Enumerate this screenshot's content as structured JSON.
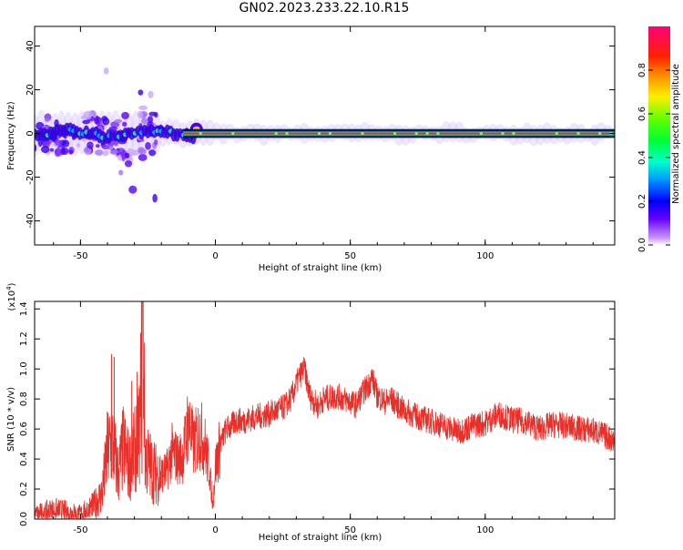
{
  "title": "GN02.2023.233.22.10.R15",
  "chart_data": [
    {
      "type": "heatmap",
      "title": "GN02.2023.233.22.10.R15",
      "xlabel": "Height of straight line (km)",
      "ylabel": "Frequency (Hz)",
      "xlim": [
        -67,
        148
      ],
      "ylim": [
        -51,
        49
      ],
      "xticks": [
        -50,
        0,
        50,
        100
      ],
      "yticks": [
        -40,
        -20,
        0,
        20,
        40
      ],
      "colorbar": {
        "label": "Normalized spectral amplitude",
        "range": [
          0.0,
          1.0
        ],
        "ticks": [
          "0.0",
          "0.2",
          "0.4",
          "0.6",
          "0.8"
        ],
        "tick_values": [
          0.0,
          0.2,
          0.4,
          0.6,
          0.8
        ],
        "colors": [
          "#ffffff",
          "#9966ff",
          "#4400ff",
          "#0000ff",
          "#00ccff",
          "#00ff99",
          "#00ff00",
          "#99ff00",
          "#ffcc00",
          "#ff3300",
          "#ff0066"
        ]
      },
      "band": {
        "center_hz": 0,
        "strong_from_km": -12,
        "scatter_from_km": -67,
        "scatter_to_km": -20
      },
      "grid": false
    },
    {
      "type": "line",
      "xlabel": "Height of straight line (km)",
      "ylabel": "SNR (10 * v/v)",
      "multiplier": "(x10",
      "multiplier_exp": "4",
      "multiplier_close": ")",
      "xlim": [
        -67,
        148
      ],
      "ylim": [
        0,
        1.45
      ],
      "xticks": [
        -50,
        0,
        50,
        100
      ],
      "yticks": [
        0.0,
        0.2,
        0.4,
        0.6,
        0.8,
        1.0,
        1.2,
        1.4
      ],
      "ytick_labels": [
        "0.0",
        "0.2",
        "0.4",
        "0.6",
        "0.8",
        "1.0",
        "1.2",
        "1.4"
      ],
      "color": "#e8302a",
      "x": [
        -67,
        -60,
        -55,
        -50,
        -45,
        -42,
        -40,
        -38,
        -36,
        -34,
        -32,
        -30,
        -28,
        -27,
        -26,
        -24,
        -22,
        -20,
        -18,
        -16,
        -14,
        -12,
        -10,
        -8,
        -6,
        -4,
        -2,
        -1,
        0,
        2,
        4,
        6,
        8,
        10,
        15,
        20,
        25,
        28,
        30,
        32,
        33,
        35,
        38,
        40,
        45,
        50,
        52,
        55,
        57,
        58,
        60,
        63,
        65,
        70,
        75,
        80,
        85,
        90,
        95,
        100,
        105,
        110,
        115,
        120,
        125,
        130,
        135,
        140,
        145,
        148
      ],
      "y": [
        0.03,
        0.06,
        0.05,
        0.03,
        0.09,
        0.17,
        0.45,
        0.5,
        0.3,
        0.48,
        0.35,
        0.45,
        0.6,
        1.44,
        0.42,
        0.35,
        0.3,
        0.3,
        0.32,
        0.45,
        0.4,
        0.42,
        0.65,
        0.48,
        0.58,
        0.5,
        0.3,
        0.08,
        0.35,
        0.5,
        0.6,
        0.62,
        0.66,
        0.65,
        0.68,
        0.7,
        0.74,
        0.8,
        0.9,
        0.98,
        1.0,
        0.82,
        0.75,
        0.8,
        0.82,
        0.78,
        0.76,
        0.85,
        0.9,
        0.95,
        0.82,
        0.78,
        0.8,
        0.72,
        0.68,
        0.65,
        0.62,
        0.58,
        0.62,
        0.64,
        0.7,
        0.66,
        0.65,
        0.6,
        0.63,
        0.62,
        0.6,
        0.59,
        0.55,
        0.52
      ]
    }
  ]
}
